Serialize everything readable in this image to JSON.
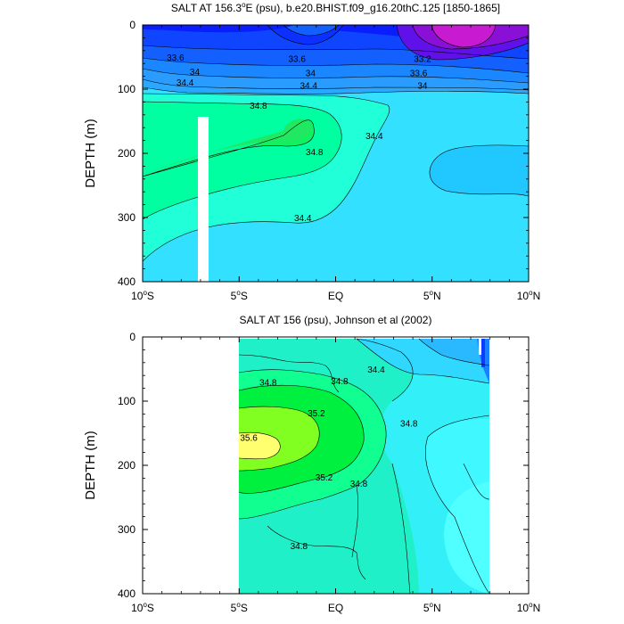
{
  "chart_data": [
    {
      "type": "contour",
      "title": "SALT AT 156.3",
      "title_degree": "o",
      "title_rest": "E (psu), b.e20.BHIST.f09_g16.20thC.125 [1850-1865]",
      "ylabel": "DEPTH (m)",
      "xlim": [
        -10,
        10
      ],
      "ylim": [
        0,
        400
      ],
      "y_inverted": true,
      "x_ticks": [
        {
          "v": -10,
          "label": "10",
          "deg": "o",
          "hem": "S"
        },
        {
          "v": -5,
          "label": "5",
          "deg": "o",
          "hem": "S"
        },
        {
          "v": 0,
          "label": "EQ",
          "deg": "",
          "hem": ""
        },
        {
          "v": 5,
          "label": "5",
          "deg": "o",
          "hem": "N"
        },
        {
          "v": 10,
          "label": "10",
          "deg": "o",
          "hem": "N"
        }
      ],
      "y_ticks": [
        {
          "v": 0,
          "label": "0"
        },
        {
          "v": 100,
          "label": "100"
        },
        {
          "v": 200,
          "label": "200"
        },
        {
          "v": 300,
          "label": "300"
        },
        {
          "v": 400,
          "label": "400"
        }
      ],
      "contour_labels": [
        {
          "x": -8.3,
          "y": 50,
          "text": "33.6"
        },
        {
          "x": -2.0,
          "y": 52,
          "text": "33.6"
        },
        {
          "x": 4.5,
          "y": 52,
          "text": "33.2"
        },
        {
          "x": -7.3,
          "y": 72,
          "text": "34"
        },
        {
          "x": -1.3,
          "y": 74,
          "text": "34"
        },
        {
          "x": 4.3,
          "y": 74,
          "text": "33.6"
        },
        {
          "x": -7.8,
          "y": 89,
          "text": "34.4"
        },
        {
          "x": -1.4,
          "y": 94,
          "text": "34.4"
        },
        {
          "x": 4.5,
          "y": 94,
          "text": "34"
        },
        {
          "x": -4.0,
          "y": 125,
          "text": "34.8"
        },
        {
          "x": -1.1,
          "y": 197,
          "text": "34.8"
        },
        {
          "x": 2.0,
          "y": 172,
          "text": "34.4"
        },
        {
          "x": -1.7,
          "y": 300,
          "text": "34.4"
        }
      ]
    },
    {
      "type": "contour",
      "title": "SALT AT 156 (psu), Johnson et al (2002)",
      "ylabel": "DEPTH (m)",
      "xlim": [
        -10,
        10
      ],
      "ylim": [
        0,
        400
      ],
      "y_inverted": true,
      "data_x_extent": [
        -5,
        8
      ],
      "x_ticks": [
        {
          "v": -10,
          "label": "10",
          "deg": "o",
          "hem": "S"
        },
        {
          "v": -5,
          "label": "5",
          "deg": "o",
          "hem": "S"
        },
        {
          "v": 0,
          "label": "EQ",
          "deg": "",
          "hem": ""
        },
        {
          "v": 5,
          "label": "5",
          "deg": "o",
          "hem": "N"
        },
        {
          "v": 10,
          "label": "10",
          "deg": "o",
          "hem": "N"
        }
      ],
      "y_ticks": [
        {
          "v": 0,
          "label": "0"
        },
        {
          "v": 100,
          "label": "100"
        },
        {
          "v": 200,
          "label": "200"
        },
        {
          "v": 300,
          "label": "300"
        },
        {
          "v": 400,
          "label": "400"
        }
      ],
      "contour_labels": [
        {
          "x": -3.5,
          "y": 70,
          "text": "34.8"
        },
        {
          "x": 2.1,
          "y": 50,
          "text": "34.4"
        },
        {
          "x": 0.2,
          "y": 68,
          "text": "34.8"
        },
        {
          "x": -1.0,
          "y": 118,
          "text": "35.2"
        },
        {
          "x": -4.5,
          "y": 156,
          "text": "35.6"
        },
        {
          "x": -0.6,
          "y": 218,
          "text": "35.2"
        },
        {
          "x": 1.2,
          "y": 228,
          "text": "34.8"
        },
        {
          "x": 3.8,
          "y": 134,
          "text": "34.8"
        },
        {
          "x": -1.9,
          "y": 325,
          "text": "34.8"
        }
      ]
    }
  ]
}
